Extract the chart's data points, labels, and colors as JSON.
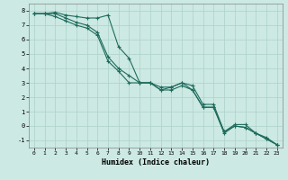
{
  "title": "",
  "xlabel": "Humidex (Indice chaleur)",
  "ylabel": "",
  "background_color": "#cce9e3",
  "grid_color": "#b0d5cc",
  "line_color": "#1e6b5c",
  "xlim": [
    -0.5,
    23.5
  ],
  "ylim": [
    -1.5,
    8.5
  ],
  "xticks": [
    0,
    1,
    2,
    3,
    4,
    5,
    6,
    7,
    8,
    9,
    10,
    11,
    12,
    13,
    14,
    15,
    16,
    17,
    18,
    19,
    20,
    21,
    22,
    23
  ],
  "yticks": [
    -1,
    0,
    1,
    2,
    3,
    4,
    5,
    6,
    7,
    8
  ],
  "series": [
    [
      7.8,
      7.8,
      7.9,
      7.7,
      7.6,
      7.5,
      7.5,
      7.7,
      5.5,
      4.7,
      3.0,
      3.0,
      2.7,
      2.7,
      3.0,
      2.8,
      1.5,
      1.5,
      -0.4,
      0.1,
      0.1,
      -0.5,
      -0.8,
      -1.3
    ],
    [
      7.8,
      7.8,
      7.8,
      7.5,
      7.2,
      7.0,
      6.5,
      4.8,
      4.0,
      3.5,
      3.0,
      3.0,
      2.5,
      2.7,
      3.0,
      2.5,
      1.3,
      1.3,
      -0.4,
      0.0,
      -0.1,
      -0.5,
      -0.9,
      -1.3
    ],
    [
      7.8,
      7.8,
      7.6,
      7.3,
      7.0,
      6.8,
      6.3,
      4.5,
      3.8,
      3.0,
      3.0,
      3.0,
      2.5,
      2.5,
      2.8,
      2.5,
      1.3,
      1.3,
      -0.5,
      0.0,
      -0.1,
      -0.5,
      -0.9,
      -1.3
    ]
  ]
}
